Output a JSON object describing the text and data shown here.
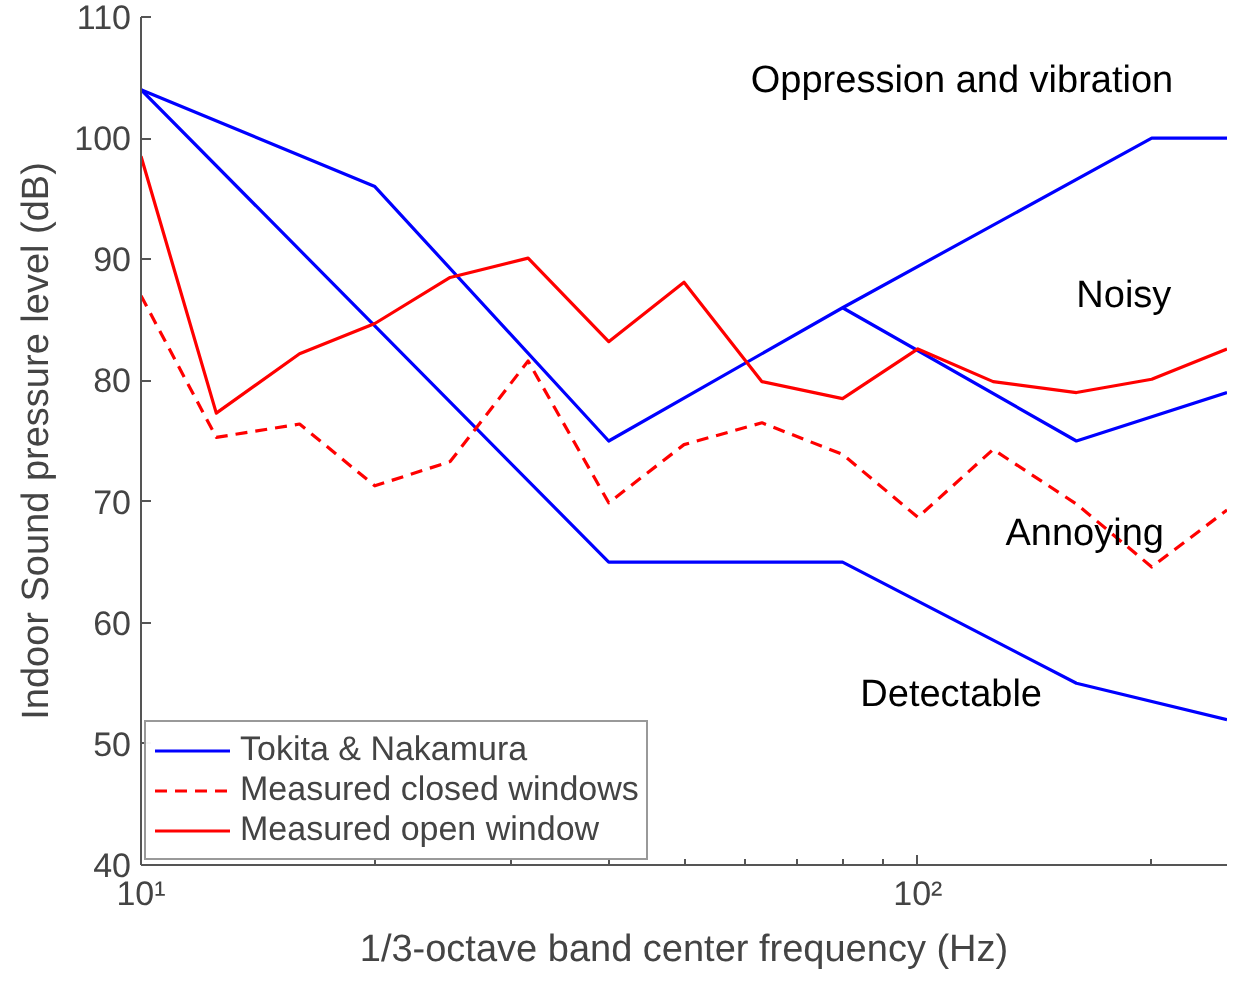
{
  "chart_data": {
    "type": "line",
    "xlabel": "1/3-octave band center frequency (Hz)",
    "ylabel": "Indoor Sound pressure level (dB)",
    "log": "x",
    "xlim": [
      10,
      250
    ],
    "ylim": [
      40,
      110
    ],
    "xticks": [
      {
        "value": 10,
        "label": "10¹"
      },
      {
        "value": 100,
        "label": "10²"
      }
    ],
    "yticks": [
      40,
      50,
      60,
      70,
      80,
      90,
      100,
      110
    ],
    "grid": false,
    "legend": "bottom left",
    "marker": "none",
    "series": [
      {
        "name": "Tokita & Nakamura",
        "color": "#0000ff",
        "line_style": "solid",
        "x": [
          10,
          40,
          80,
          160,
          250
        ],
        "values": [
          104,
          65,
          65,
          55,
          52
        ]
      },
      {
        "color": "#0000ff",
        "line_style": "solid",
        "x": [
          10,
          20,
          40,
          80,
          200,
          250
        ],
        "values": [
          104,
          96,
          75,
          86,
          100,
          100
        ]
      },
      {
        "color": "#0000ff",
        "line_style": "solid",
        "x": [
          80,
          160,
          250
        ],
        "values": [
          86,
          75,
          79
        ]
      },
      {
        "name": "Measured closed windows",
        "color": "#ff0000",
        "line_style": "dashed",
        "x": [
          10,
          12.5,
          16,
          20,
          25,
          31.5,
          40,
          50,
          63,
          80,
          100,
          125,
          160,
          200,
          250
        ],
        "values": [
          87,
          75.3,
          76.4,
          71.3,
          73.3,
          81.6,
          69.9,
          74.7,
          76.5,
          73.9,
          68.7,
          74.3,
          69.8,
          64.6,
          69.3
        ]
      },
      {
        "name": "Measured open window",
        "color": "#ff0000",
        "line_style": "solid",
        "x": [
          10,
          12.5,
          16,
          20,
          25,
          31.5,
          40,
          50,
          63,
          80,
          100,
          125,
          160,
          200,
          250
        ],
        "values": [
          98.5,
          77.3,
          82.2,
          84.7,
          88.5,
          90.1,
          83.2,
          88.1,
          79.9,
          78.5,
          82.6,
          79.9,
          79.0,
          80.1,
          82.6
        ]
      }
    ],
    "annotations": [
      "Oppression and vibration",
      "Noisy",
      "Annoying",
      "Detectable"
    ]
  }
}
